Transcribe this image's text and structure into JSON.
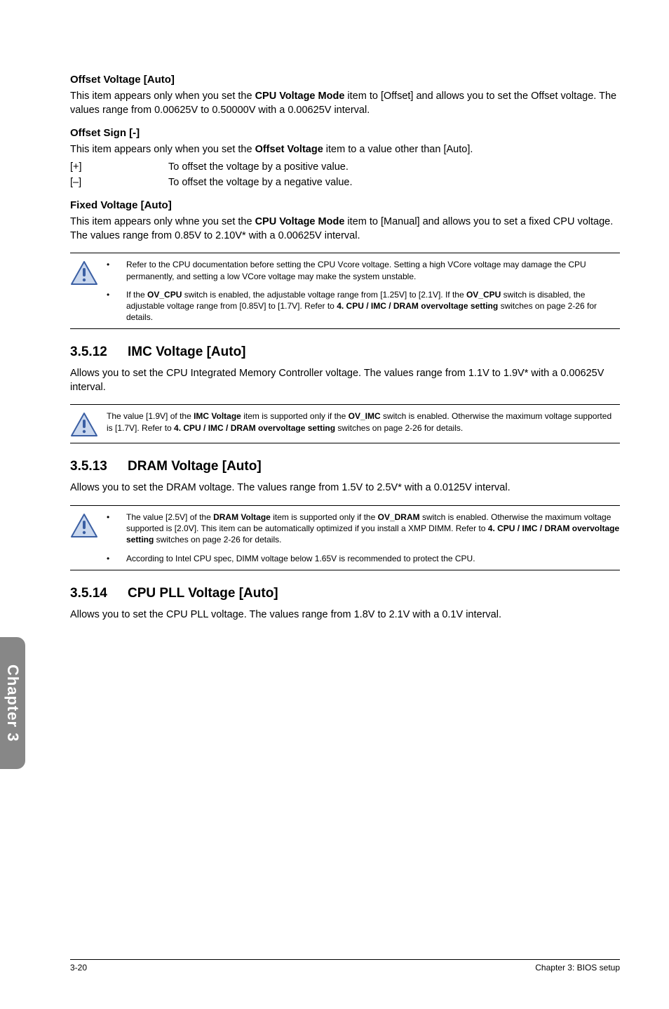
{
  "colors": {
    "page_bg": "#ffffff",
    "text": "#000000",
    "tab_bg": "#878787",
    "tab_text": "#ffffff",
    "icon_stroke": "#3b5fa3",
    "icon_fill": "#c9d7ee",
    "rule": "#000000"
  },
  "typography": {
    "body_pt": 11,
    "h3_pt": 11.5,
    "sec_head_pt": 14,
    "note_pt": 9,
    "footer_pt": 9
  },
  "sections": {
    "offset_voltage": {
      "title": "Offset Voltage [Auto]",
      "body_pre": "This item appears only when you set the ",
      "body_bold": "CPU Voltage Mode",
      "body_post": " item to [Offset] and allows you to set the Offset voltage. The values range from 0.00625V to 0.50000V with a 0.00625V interval."
    },
    "offset_sign": {
      "title": "Offset Sign [-]",
      "body_pre": "This item appears only when you set the ",
      "body_bold": "Offset Voltage",
      "body_post": " item to a value other than [Auto].",
      "options": [
        {
          "sym": "[+]",
          "desc": "To offset the voltage by a positive value."
        },
        {
          "sym": "[–]",
          "desc": "To offset the voltage by a negative value."
        }
      ]
    },
    "fixed_voltage": {
      "title": "Fixed Voltage [Auto]",
      "body_pre": "This item appears only whne you set the ",
      "body_bold": "CPU Voltage Mode",
      "body_post": " item to [Manual] and allows you to set a fixed CPU voltage. The values range from 0.85V to 2.10V* with a 0.00625V interval."
    },
    "note1": {
      "bullets": [
        "Refer to the CPU documentation before setting the CPU Vcore voltage. Setting a high VCore voltage may damage the CPU permanently, and setting a low VCore voltage may make the system unstable.",
        "If the <b>OV_CPU</b> switch is enabled, the adjustable voltage range from [1.25V] to [2.1V]. If the <b>OV_CPU</b> switch is disabled, the adjustable voltage range from [0.85V] to [1.7V]. Refer to <b>4. CPU / IMC / DRAM overvoltage setting</b> switches on page 2-26 for details."
      ]
    },
    "imc": {
      "num": "3.5.12",
      "title": "IMC Voltage [Auto]",
      "body": "Allows you to set the CPU Integrated Memory Controller voltage. The values range from 1.1V to 1.9V* with a 0.00625V interval."
    },
    "note2": {
      "text": "The value [1.9V] of the <b>IMC Voltage</b> item is supported only if the <b>OV_IMC</b> switch is enabled. Otherwise the maximum voltage supported is [1.7V]. Refer to <b>4. CPU / IMC / DRAM overvoltage setting</b> switches on page 2-26 for details."
    },
    "dram": {
      "num": "3.5.13",
      "title": "DRAM Voltage [Auto]",
      "body": "Allows you to set the DRAM voltage. The values range from 1.5V to 2.5V* with a 0.0125V interval."
    },
    "note3": {
      "bullets": [
        "The value [2.5V] of the <b>DRAM Voltage</b> item is supported only if the <b>OV_DRAM</b> switch is enabled. Otherwise the maximum voltage supported is [2.0V]. This item can be automatically optimized if you install a XMP DIMM. Refer to <b>4. CPU / IMC / DRAM overvoltage setting</b> switches on page 2-26 for details.",
        "According to Intel CPU spec, DIMM voltage below 1.65V is recommended to protect the CPU."
      ]
    },
    "pll": {
      "num": "3.5.14",
      "title": "CPU PLL Voltage [Auto]",
      "body": "Allows you to set the CPU PLL voltage. The values range from 1.8V to 2.1V with a 0.1V interval."
    }
  },
  "side_tab": "Chapter 3",
  "footer": {
    "left": "3-20",
    "right": "Chapter 3: BIOS setup"
  }
}
